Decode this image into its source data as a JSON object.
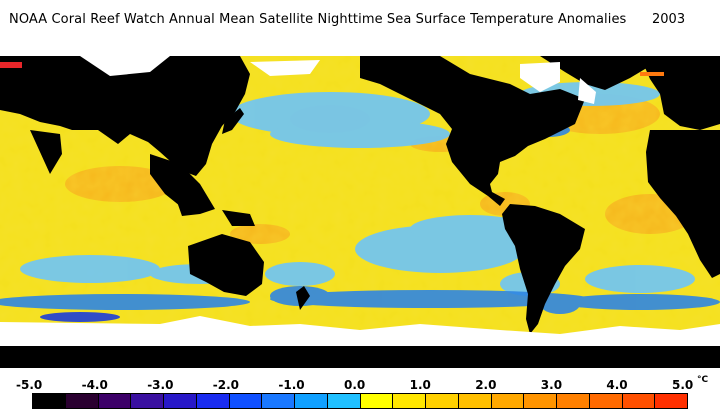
{
  "header": {
    "title": "NOAA Coral Reef Watch Annual Mean Satellite Nighttime Sea Surface Temperature Anomalies",
    "year": "2003"
  },
  "colors": {
    "ocean_base": "#f2e41a",
    "ocean_warm": "#f6b01a",
    "ocean_cool": "#6ec8f0",
    "ocean_cold": "#2f8ee6",
    "land": "#000000",
    "ice": "#ffffff"
  },
  "legend": {
    "tick_labels": [
      "-5.0",
      "-4.0",
      "-3.0",
      "-2.0",
      "-1.0",
      "0.0",
      "1.0",
      "2.0",
      "3.0",
      "4.0",
      "5.0"
    ],
    "unit": "°C",
    "swatches": [
      "#000000",
      "#2a0030",
      "#3c0068",
      "#3a10a0",
      "#2818c8",
      "#1a2cf0",
      "#1050ff",
      "#1a78ff",
      "#10a0ff",
      "#20c0ff",
      "#ffff00",
      "#ffe600",
      "#ffd000",
      "#ffbf00",
      "#ffa800",
      "#ff9400",
      "#ff8000",
      "#ff6a00",
      "#ff5000",
      "#ff3000"
    ]
  }
}
